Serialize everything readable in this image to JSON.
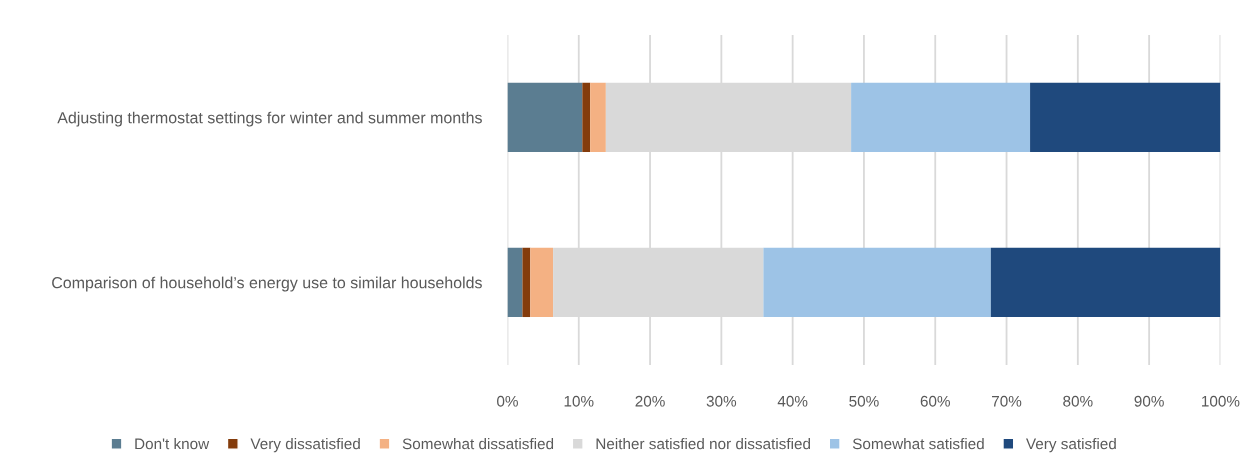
{
  "chart_data": {
    "type": "bar",
    "orientation": "horizontal",
    "stacked": true,
    "categories": [
      "Adjusting thermostat settings for winter and summer months",
      "Comparison of household’s energy use to similar households"
    ],
    "series": [
      {
        "name": "Don't know",
        "color": "#5b7d91",
        "values": [
          10.5,
          2.1
        ]
      },
      {
        "name": "Very dissatisfied",
        "color": "#843c0c",
        "values": [
          1.1,
          1.1
        ]
      },
      {
        "name": "Somewhat dissatisfied",
        "color": "#f4b183",
        "values": [
          2.2,
          3.2
        ]
      },
      {
        "name": "Neither satisfied nor dissatisfied",
        "color": "#d9d9d9",
        "values": [
          34.4,
          29.5
        ]
      },
      {
        "name": "Somewhat satisfied",
        "color": "#9dc3e6",
        "values": [
          25.1,
          31.9
        ]
      },
      {
        "name": "Very satisfied",
        "color": "#1f497d",
        "values": [
          26.7,
          32.2
        ]
      }
    ],
    "xlim": [
      0,
      100
    ],
    "xticks": [
      {
        "value": 0,
        "label": "0%"
      },
      {
        "value": 10,
        "label": "10%"
      },
      {
        "value": 20,
        "label": "20%"
      },
      {
        "value": 30,
        "label": "30%"
      },
      {
        "value": 40,
        "label": "40%"
      },
      {
        "value": 50,
        "label": "50%"
      },
      {
        "value": 60,
        "label": "60%"
      },
      {
        "value": 70,
        "label": "70%"
      },
      {
        "value": 80,
        "label": "80%"
      },
      {
        "value": 90,
        "label": "90%"
      },
      {
        "value": 100,
        "label": "100%"
      }
    ],
    "grid": "x",
    "legend": "bottom"
  }
}
